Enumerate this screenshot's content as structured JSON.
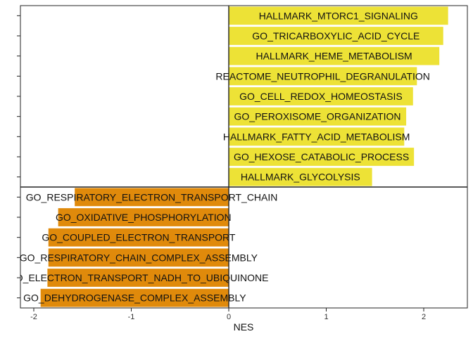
{
  "chart_data": {
    "type": "bar",
    "orientation": "horizontal",
    "xlabel": "NES",
    "ylabel": "",
    "xlim": [
      -2.12,
      2.45
    ],
    "xticks": [
      -2,
      -1,
      0,
      1,
      2
    ],
    "xtick_labels": [
      "-2",
      "-1",
      "0",
      "1",
      "2"
    ],
    "colors": {
      "positive": "#ede236",
      "negative": "#e08a0b",
      "frame": "#222222"
    },
    "categories": [
      "HALLMARK_MTORC1_SIGNALING",
      "GO_TRICARBOXYLIC_ACID_CYCLE",
      "HALLMARK_HEME_METABOLISM",
      "REACTOME_NEUTROPHIL_DEGRANULATION",
      "GO_CELL_REDOX_HOMEOSTASIS",
      "GO_PEROXISOME_ORGANIZATION",
      "HALLMARK_FATTY_ACID_METABOLISM",
      "GO_HEXOSE_CATABOLIC_PROCESS",
      "HALLMARK_GLYCOLYSIS",
      "GO_RESPIRATORY_ELECTRON_TRANSPORT_CHAIN",
      "GO_OXIDATIVE_PHOSPHORYLATION",
      "GO_COUPLED_ELECTRON_TRANSPORT",
      "GO_RESPIRATORY_CHAIN_COMPLEX_ASSEMBLY",
      "GO_ELECTRON_TRANSPORT_NADH_TO_UBIQUINONE",
      "GO_DEHYDROGENASE_COMPLEX_ASSEMBLY"
    ],
    "values": [
      2.25,
      2.2,
      2.16,
      1.93,
      1.89,
      1.82,
      1.8,
      1.9,
      1.47,
      -1.58,
      -1.75,
      -1.85,
      -1.85,
      -1.86,
      -1.93
    ]
  }
}
